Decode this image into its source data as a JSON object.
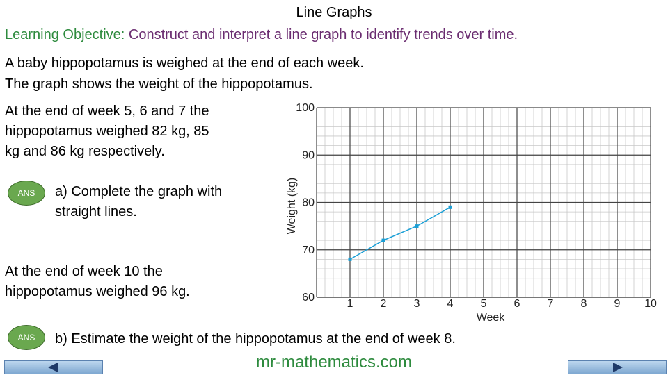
{
  "title": "Line Graphs",
  "objective": {
    "label": "Learning Objective:",
    "text": "Construct and interpret a line graph to identify trends over time."
  },
  "intro": [
    "A baby hippopotamus is weighed at the end of each week.",
    "The graph shows the weight of the hippopotamus."
  ],
  "info1": [
    "At the end of week 5, 6 and 7 the",
    "hippopotamus weighed 82 kg, 85",
    "kg and 86 kg respectively."
  ],
  "question_a": [
    "a) Complete the graph with",
    "straight lines."
  ],
  "info2": [
    "At the end of week 10 the",
    "hippopotamus weighed 96 kg."
  ],
  "question_b": "b) Estimate the weight of the hippopotamus at the end of week 8.",
  "buttons": [
    "ANS",
    "ANS"
  ],
  "footer": "mr-mathematics.com",
  "chart_data": {
    "type": "line",
    "x": [
      1,
      2,
      3,
      4
    ],
    "values": [
      68,
      72,
      75,
      79
    ],
    "color": "#1a9fd6",
    "xlabel": "Week",
    "ylabel": "Weight (kg)",
    "xlim": [
      0,
      10
    ],
    "xticks": [
      1,
      2,
      3,
      4,
      5,
      6,
      7,
      8,
      9,
      10
    ],
    "ylim": [
      60,
      100
    ],
    "yticks": [
      60,
      70,
      80,
      90,
      100
    ],
    "grid": true
  }
}
